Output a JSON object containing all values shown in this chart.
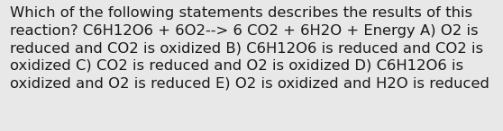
{
  "text": "Which of the following statements describes the results of this\nreaction? C6H12O6 + 6O2--> 6 CO2 + 6H2O + Energy A) O2 is\nreduced and CO2 is oxidized B) C6H12O6 is reduced and CO2 is\noxidized C) CO2 is reduced and O2 is oxidized D) C6H12O6 is\noxidized and O2 is reduced E) O2 is oxidized and H2O is reduced",
  "background_color": "#e8e8e8",
  "text_color": "#1a1a1a",
  "font_size": 11.8,
  "fig_width": 5.58,
  "fig_height": 1.46,
  "dpi": 100
}
